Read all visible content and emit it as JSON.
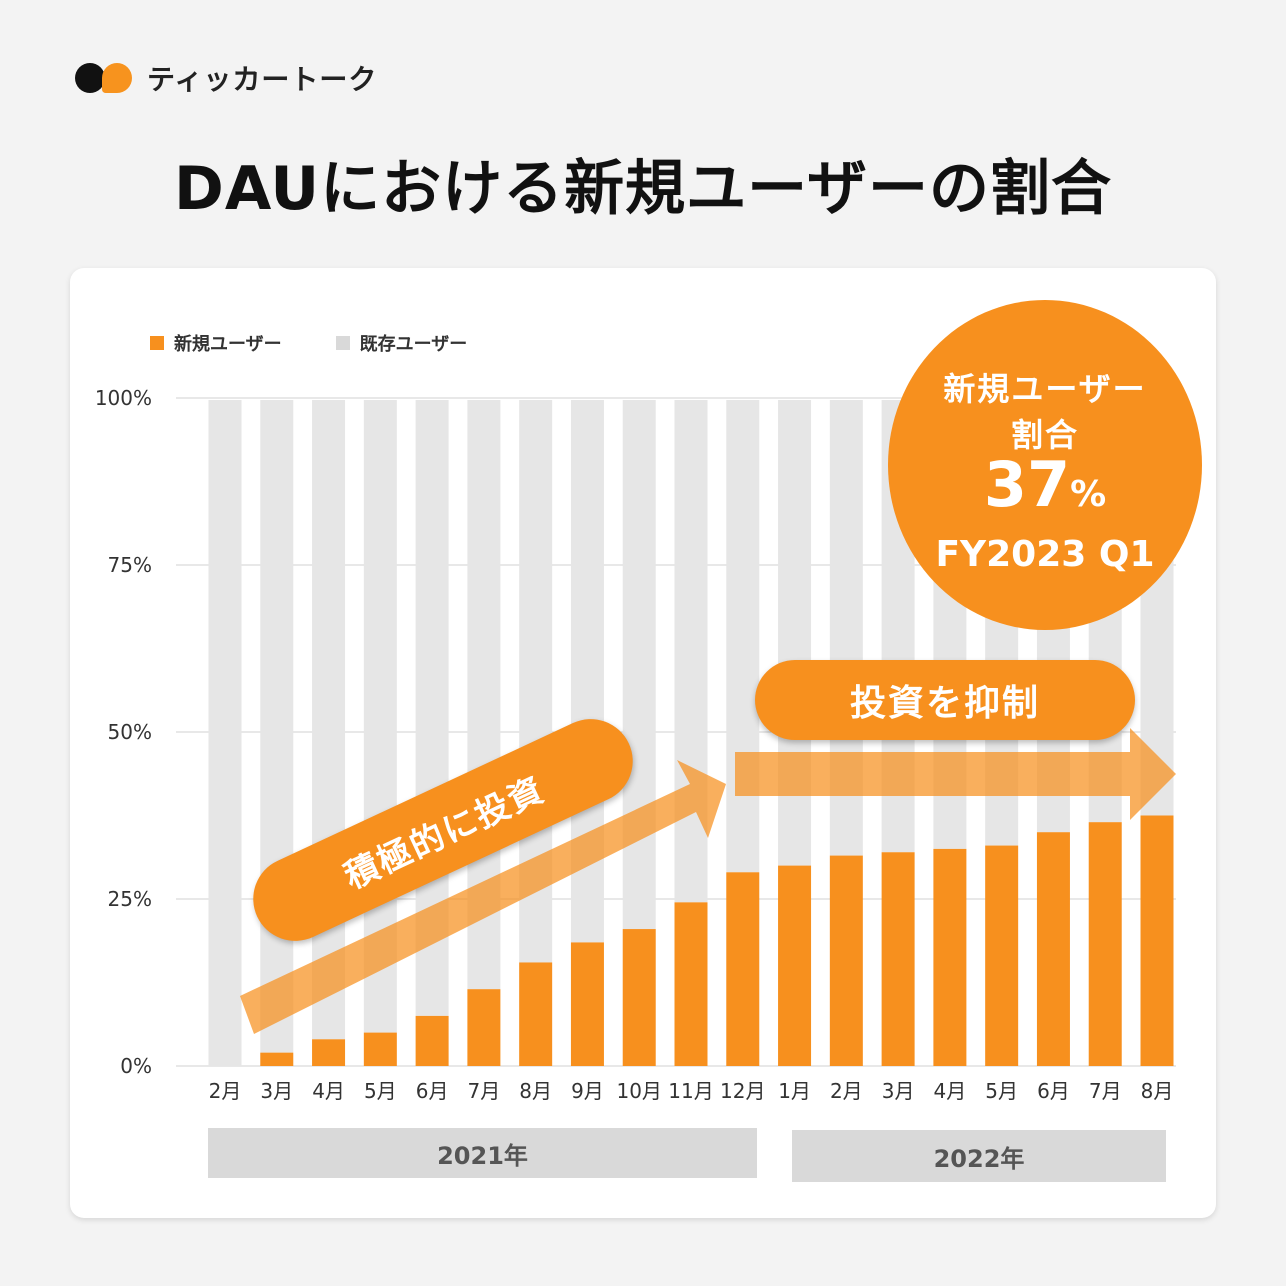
{
  "brand": {
    "name": "ティッカートーク",
    "colors": {
      "primary": "#f7901e",
      "dark": "#111111"
    }
  },
  "title": "DAUにおける新規ユーザーの割合",
  "chart_data": {
    "type": "bar",
    "stacked": true,
    "categories": [
      "2月",
      "3月",
      "4月",
      "5月",
      "6月",
      "7月",
      "8月",
      "9月",
      "10月",
      "11月",
      "12月",
      "1月",
      "2月",
      "3月",
      "4月",
      "5月",
      "6月",
      "7月",
      "8月"
    ],
    "series": [
      {
        "name": "新規ユーザー",
        "color": "#f7901e",
        "values": [
          0,
          2,
          4,
          5,
          7.5,
          11.5,
          15.5,
          18.5,
          20.5,
          24.5,
          29,
          30,
          31.5,
          32,
          32.5,
          33,
          35,
          36.5,
          37.5
        ]
      },
      {
        "name": "既存ユーザー",
        "color": "#e6e6e6",
        "values": [
          100,
          98,
          96,
          95,
          92.5,
          88.5,
          84.5,
          81.5,
          79.5,
          75.5,
          71,
          70,
          68.5,
          68,
          67.5,
          67,
          65,
          63.5,
          62.5
        ]
      }
    ],
    "y_ticks": [
      "0%",
      "25%",
      "50%",
      "75%",
      "100%"
    ],
    "ylim": [
      0,
      100
    ],
    "legend_position": "top-left",
    "grid": true,
    "year_groups": [
      "2021年",
      "2022年"
    ],
    "annotations": {
      "growth_phase": "積極的に投資",
      "restraint_phase": "投資を抑制"
    },
    "highlight": {
      "line1": "新規ユーザー",
      "line2": "割合",
      "value": "37",
      "unit": "%",
      "period": "FY2023 Q1"
    }
  }
}
